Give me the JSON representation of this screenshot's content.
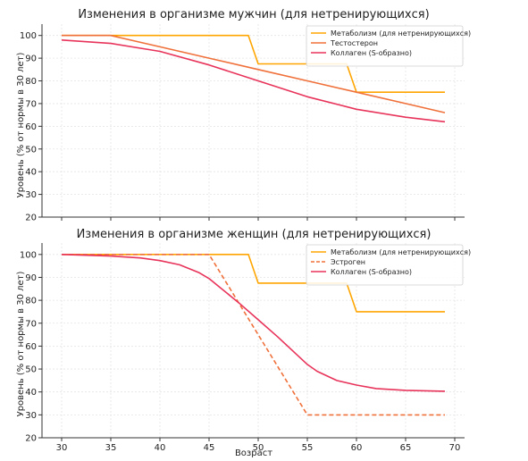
{
  "chart_data": [
    {
      "type": "line",
      "title": "Изменения в организме мужчин (для нетренирующихся)",
      "xlabel": "",
      "ylabel": "Уровень (% от нормы в 30 лет)",
      "xlim": [
        28,
        71
      ],
      "ylim": [
        20,
        105
      ],
      "xticks": [
        30,
        35,
        40,
        45,
        50,
        55,
        60,
        65,
        70
      ],
      "yticks": [
        20,
        30,
        40,
        50,
        60,
        70,
        80,
        90,
        100
      ],
      "show_xtick_labels": false,
      "grid": true,
      "legend_position": "top-right",
      "series": [
        {
          "name": "Метаболизм (для нетренирующихся)",
          "color": "#ffa500",
          "dash": "solid",
          "x": [
            30,
            49,
            49,
            50,
            59,
            59,
            60,
            69
          ],
          "y": [
            100,
            100,
            100,
            87.5,
            87.5,
            87.5,
            75,
            75
          ]
        },
        {
          "name": "Тестостерон",
          "color": "#f0703a",
          "dash": "solid",
          "x": [
            30,
            35,
            40,
            45,
            50,
            55,
            60,
            65,
            69
          ],
          "y": [
            100,
            100,
            95,
            90,
            85,
            80,
            75,
            70,
            66
          ]
        },
        {
          "name": "Коллаген (S-образно)",
          "color": "#e8335a",
          "dash": "solid",
          "x": [
            30,
            35,
            40,
            45,
            50,
            55,
            60,
            65,
            69
          ],
          "y": [
            98,
            96.5,
            93,
            87,
            80,
            73,
            67.5,
            64,
            62
          ]
        }
      ]
    },
    {
      "type": "line",
      "title": "Изменения в организме женщин (для нетренирующихся)",
      "xlabel": "Возраст",
      "ylabel": "Уровень (% от нормы в 30 лет)",
      "xlim": [
        28,
        71
      ],
      "ylim": [
        20,
        105
      ],
      "xticks": [
        30,
        35,
        40,
        45,
        50,
        55,
        60,
        65,
        70
      ],
      "yticks": [
        20,
        30,
        40,
        50,
        60,
        70,
        80,
        90,
        100
      ],
      "show_xtick_labels": true,
      "grid": true,
      "legend_position": "top-right",
      "series": [
        {
          "name": "Метаболизм (для нетренирующихся)",
          "color": "#ffa500",
          "dash": "solid",
          "x": [
            30,
            49,
            50,
            59,
            60,
            69
          ],
          "y": [
            100,
            100,
            87.5,
            87.5,
            75,
            75
          ]
        },
        {
          "name": "Эстроген",
          "color": "#f0703a",
          "dash": "dashed",
          "x": [
            30,
            45,
            55,
            69
          ],
          "y": [
            100,
            100,
            30,
            30
          ]
        },
        {
          "name": "Коллаген (S-образно)",
          "color": "#e8335a",
          "dash": "solid",
          "x": [
            30,
            35,
            38,
            40,
            42,
            44,
            45,
            46,
            48,
            50,
            52,
            54,
            55,
            56,
            58,
            60,
            62,
            65,
            69
          ],
          "y": [
            100,
            99.3,
            98.5,
            97.3,
            95.5,
            92,
            89.5,
            86,
            79,
            71.5,
            64,
            56,
            52,
            49,
            45,
            43,
            41.5,
            40.7,
            40.3
          ]
        }
      ]
    }
  ]
}
